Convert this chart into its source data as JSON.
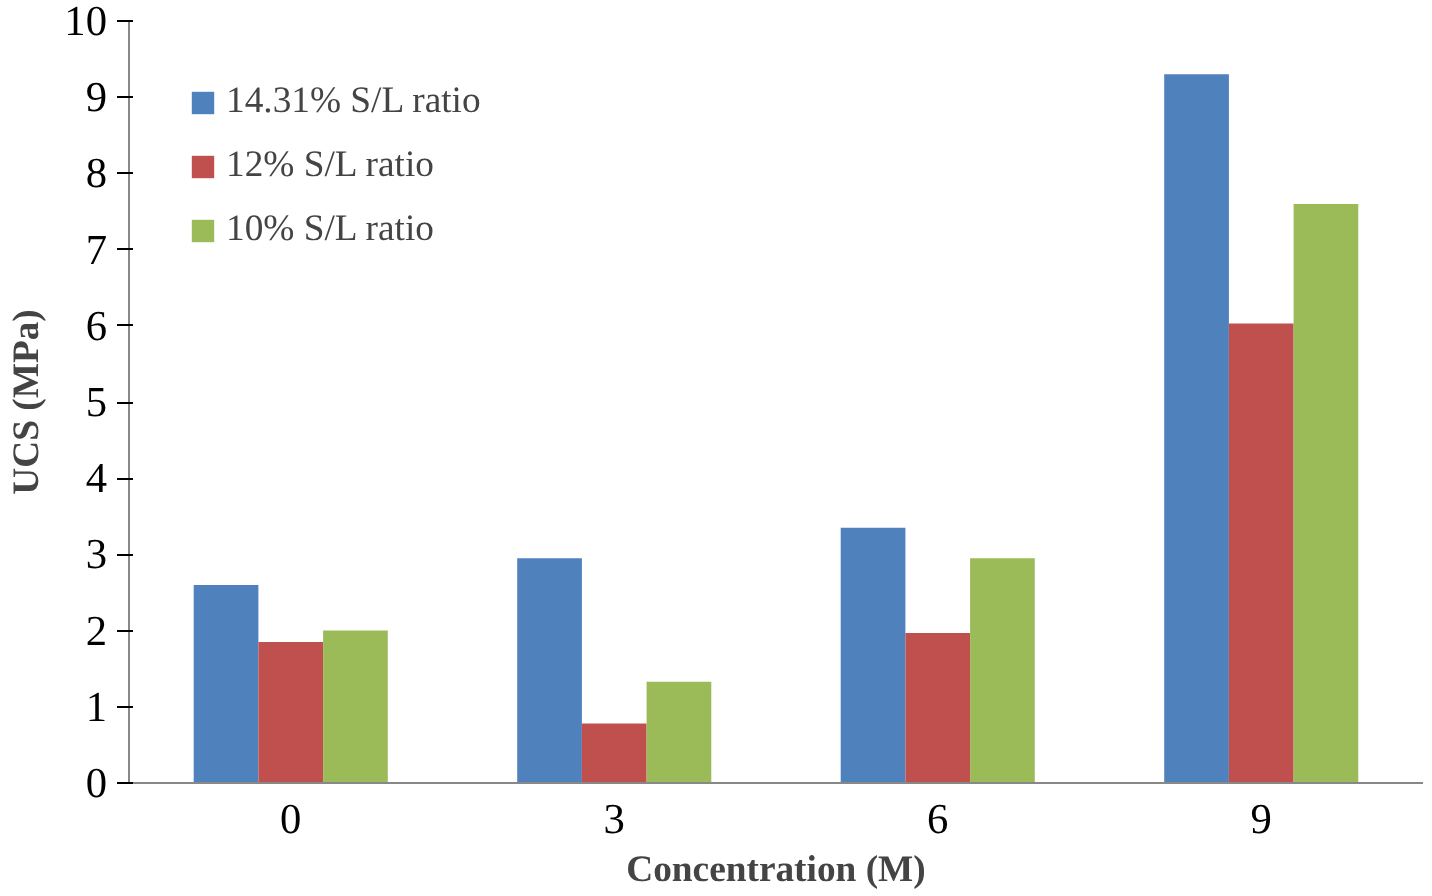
{
  "chart_data": {
    "type": "bar",
    "xlabel": "Concentration (M)",
    "ylabel": "UCS (MPa)",
    "categories": [
      "0",
      "3",
      "6",
      "9"
    ],
    "series": [
      {
        "name": "14.31% S/L ratio",
        "color": "#4f81bd",
        "values": [
          2.6,
          2.95,
          3.35,
          9.3
        ]
      },
      {
        "name": "12% S/L ratio",
        "color": "#c0504d",
        "values": [
          1.85,
          0.78,
          1.97,
          6.03
        ]
      },
      {
        "name": "10% S/L ratio",
        "color": "#9bbb59",
        "values": [
          2.0,
          1.33,
          2.95,
          7.6
        ]
      }
    ],
    "ylim": [
      0,
      10
    ],
    "yticks": [
      0,
      1,
      2,
      3,
      4,
      5,
      6,
      7,
      8,
      9,
      10
    ],
    "grid": false,
    "legend": "top left"
  }
}
